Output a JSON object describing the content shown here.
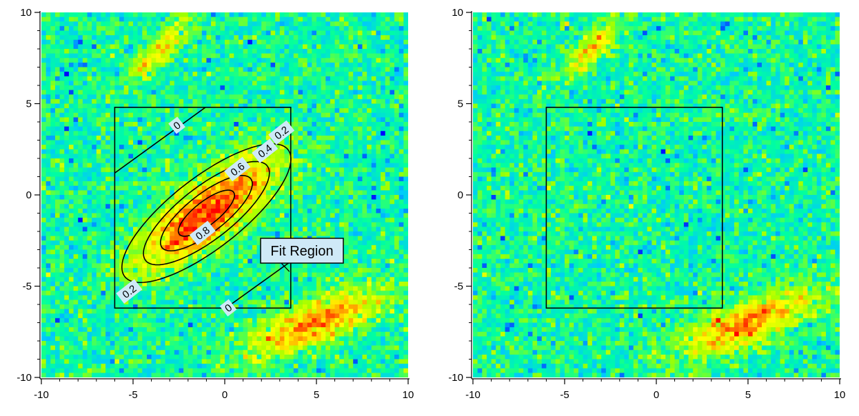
{
  "chart_data": [
    {
      "type": "heatmap",
      "title": "",
      "xlabel": "",
      "ylabel": "",
      "xlim": [
        -10,
        10
      ],
      "ylim": [
        -10,
        10
      ],
      "x_ticks": [
        "-10",
        "-5",
        "0",
        "5",
        "10"
      ],
      "y_ticks": [
        "10",
        "5",
        "0",
        "-5",
        "-10"
      ],
      "grid": false,
      "colormap": [
        "#0000ff",
        "#00c8ff",
        "#00ffa0",
        "#a0ff00",
        "#ffff00",
        "#ff8000",
        "#ff0000"
      ],
      "features": [
        {
          "center": [
            -3.5,
            8.0
          ],
          "amplitude": 0.55,
          "sigma_major": 1.6,
          "sigma_minor": 0.45,
          "angle_deg": 45
        },
        {
          "center": [
            -1.0,
            -1.0
          ],
          "amplitude": 0.95,
          "sigma_major": 3.2,
          "sigma_minor": 1.1,
          "angle_deg": 38
        },
        {
          "center": [
            5.0,
            -7.0
          ],
          "amplitude": 0.75,
          "sigma_major": 2.8,
          "sigma_minor": 0.8,
          "angle_deg": 22
        }
      ],
      "fit_region": {
        "x": [
          -6,
          3.6
        ],
        "y": [
          -6.2,
          4.8
        ],
        "label": "Fit Region"
      },
      "contours": [
        {
          "level": 0.2,
          "label": "0.2"
        },
        {
          "level": 0.4,
          "label": "0.4"
        },
        {
          "level": 0.6,
          "label": "0.6"
        },
        {
          "level": 0.8,
          "label": "0.8"
        }
      ],
      "zero_contour_label": "0",
      "contour_label_positions": [
        {
          "text": "0",
          "x": -2.6,
          "y": 3.8
        },
        {
          "text": "0.2",
          "x": 3.1,
          "y": 3.4
        },
        {
          "text": "0.4",
          "x": 2.2,
          "y": 2.4
        },
        {
          "text": "0.6",
          "x": 0.7,
          "y": 1.4
        },
        {
          "text": "0.8",
          "x": -1.2,
          "y": -2.1
        },
        {
          "text": "0.2",
          "x": -5.2,
          "y": -5.3
        },
        {
          "text": "0",
          "x": 0.2,
          "y": -6.2
        }
      ]
    },
    {
      "type": "heatmap",
      "title": "",
      "xlabel": "",
      "ylabel": "",
      "xlim": [
        -10,
        10
      ],
      "ylim": [
        -10,
        10
      ],
      "x_ticks": [
        "-10",
        "-5",
        "0",
        "5",
        "10"
      ],
      "y_ticks": [
        "10",
        "5",
        "0",
        "-5",
        "-10"
      ],
      "grid": false,
      "features": [
        {
          "center": [
            -3.5,
            8.0
          ],
          "amplitude": 0.55,
          "sigma_major": 1.6,
          "sigma_minor": 0.45,
          "angle_deg": 45
        },
        {
          "center": [
            5.0,
            -7.0
          ],
          "amplitude": 0.75,
          "sigma_major": 2.8,
          "sigma_minor": 0.8,
          "angle_deg": 22
        }
      ],
      "fit_region": {
        "x": [
          -6,
          3.6
        ],
        "y": [
          -6.2,
          4.8
        ]
      }
    }
  ]
}
